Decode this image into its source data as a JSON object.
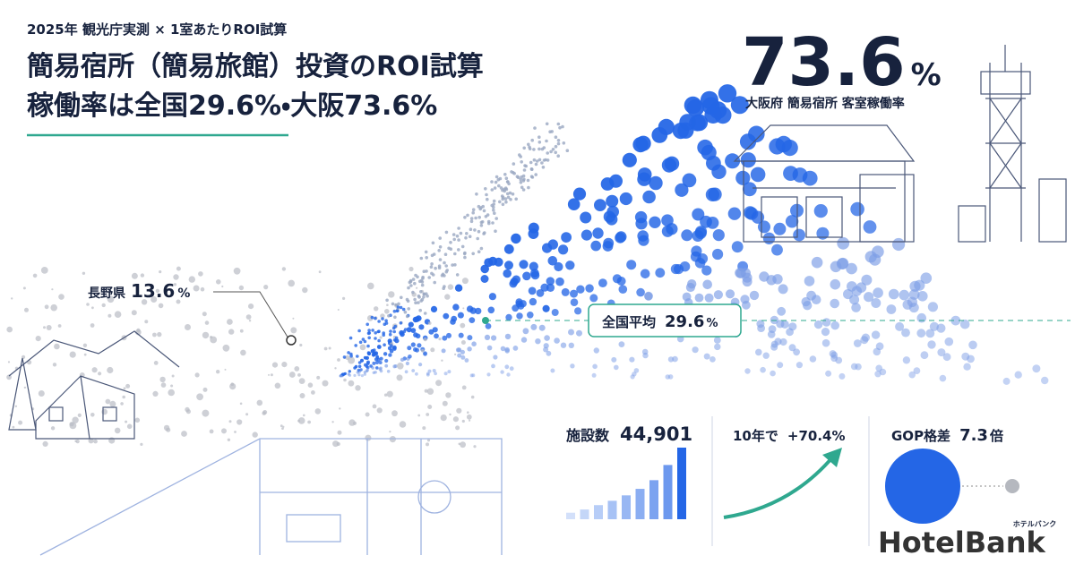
{
  "header": {
    "subtitle": "2025年 観光庁実測 × 1室あたりROI試算",
    "title_line1": "簡易宿所（簡易旅館）投資のROI試算",
    "title_line2": "稼働率は全国29.6%・大阪73.6%"
  },
  "osaka": {
    "value": "73.6",
    "unit": "%",
    "label": "大阪府 簡易宿所 客室稼働率"
  },
  "nagano": {
    "label": "長野県",
    "value": "13.6",
    "unit": "%"
  },
  "national": {
    "label": "全国平均",
    "value": "29.6",
    "unit": "%"
  },
  "facilities": {
    "label": "施設数",
    "value": "44,901",
    "bars": [
      6,
      9,
      13,
      17,
      22,
      28,
      36,
      50,
      66
    ]
  },
  "growth": {
    "label": "10年で",
    "value": "+70.4%"
  },
  "gop": {
    "label": "GOP格差",
    "value": "7.3",
    "unit": "倍"
  },
  "logo": {
    "name": "HotelBank",
    "kana": "ホテルバンク"
  }
}
